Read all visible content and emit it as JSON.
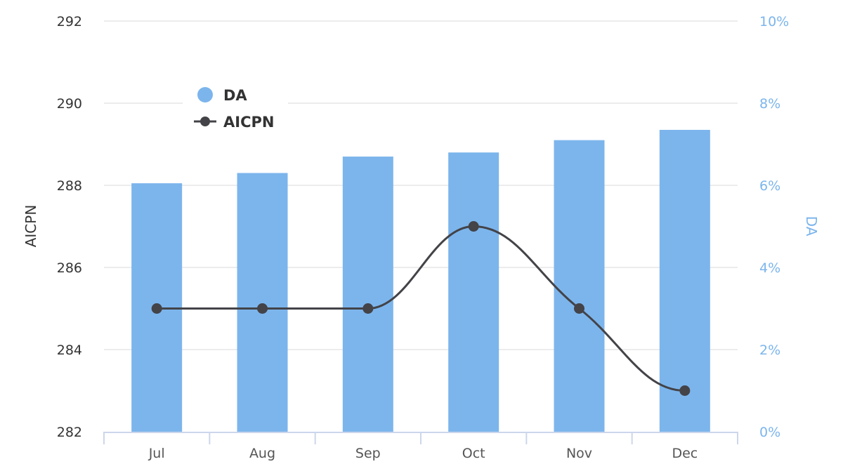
{
  "chart_data": {
    "type": "bar",
    "title": "",
    "categories": [
      "Jul",
      "Aug",
      "Sep",
      "Oct",
      "Nov",
      "Dec"
    ],
    "series": [
      {
        "name": "DA",
        "type": "bar",
        "axis": "right",
        "color": "#7cb5ec",
        "values": [
          6.05,
          6.3,
          6.7,
          6.8,
          7.1,
          7.35
        ]
      },
      {
        "name": "AICPN",
        "type": "line",
        "axis": "left",
        "color": "#434348",
        "values": [
          285,
          285,
          285,
          287,
          285,
          283
        ]
      }
    ],
    "xlabel": "",
    "ylabel_left": "AICPN",
    "ylabel_right": "DA",
    "ylim_left": [
      282,
      292
    ],
    "ylim_right": [
      0,
      10
    ],
    "left_ticks": [
      "282",
      "284",
      "286",
      "288",
      "290",
      "292"
    ],
    "right_ticks": [
      "0%",
      "2%",
      "4%",
      "6%",
      "8%",
      "10%"
    ],
    "grid": true,
    "legend_position": "top-left inside"
  },
  "legend": {
    "items": [
      {
        "label": "DA",
        "icon": "circle-marker"
      },
      {
        "label": "AICPN",
        "icon": "line-marker"
      }
    ]
  },
  "axes": {
    "left_title": "AICPN",
    "right_title": "DA"
  },
  "colors": {
    "bar": "#7cb5ec",
    "line": "#434348",
    "grid": "#e6e6e6",
    "axis": "#ccd6eb"
  }
}
